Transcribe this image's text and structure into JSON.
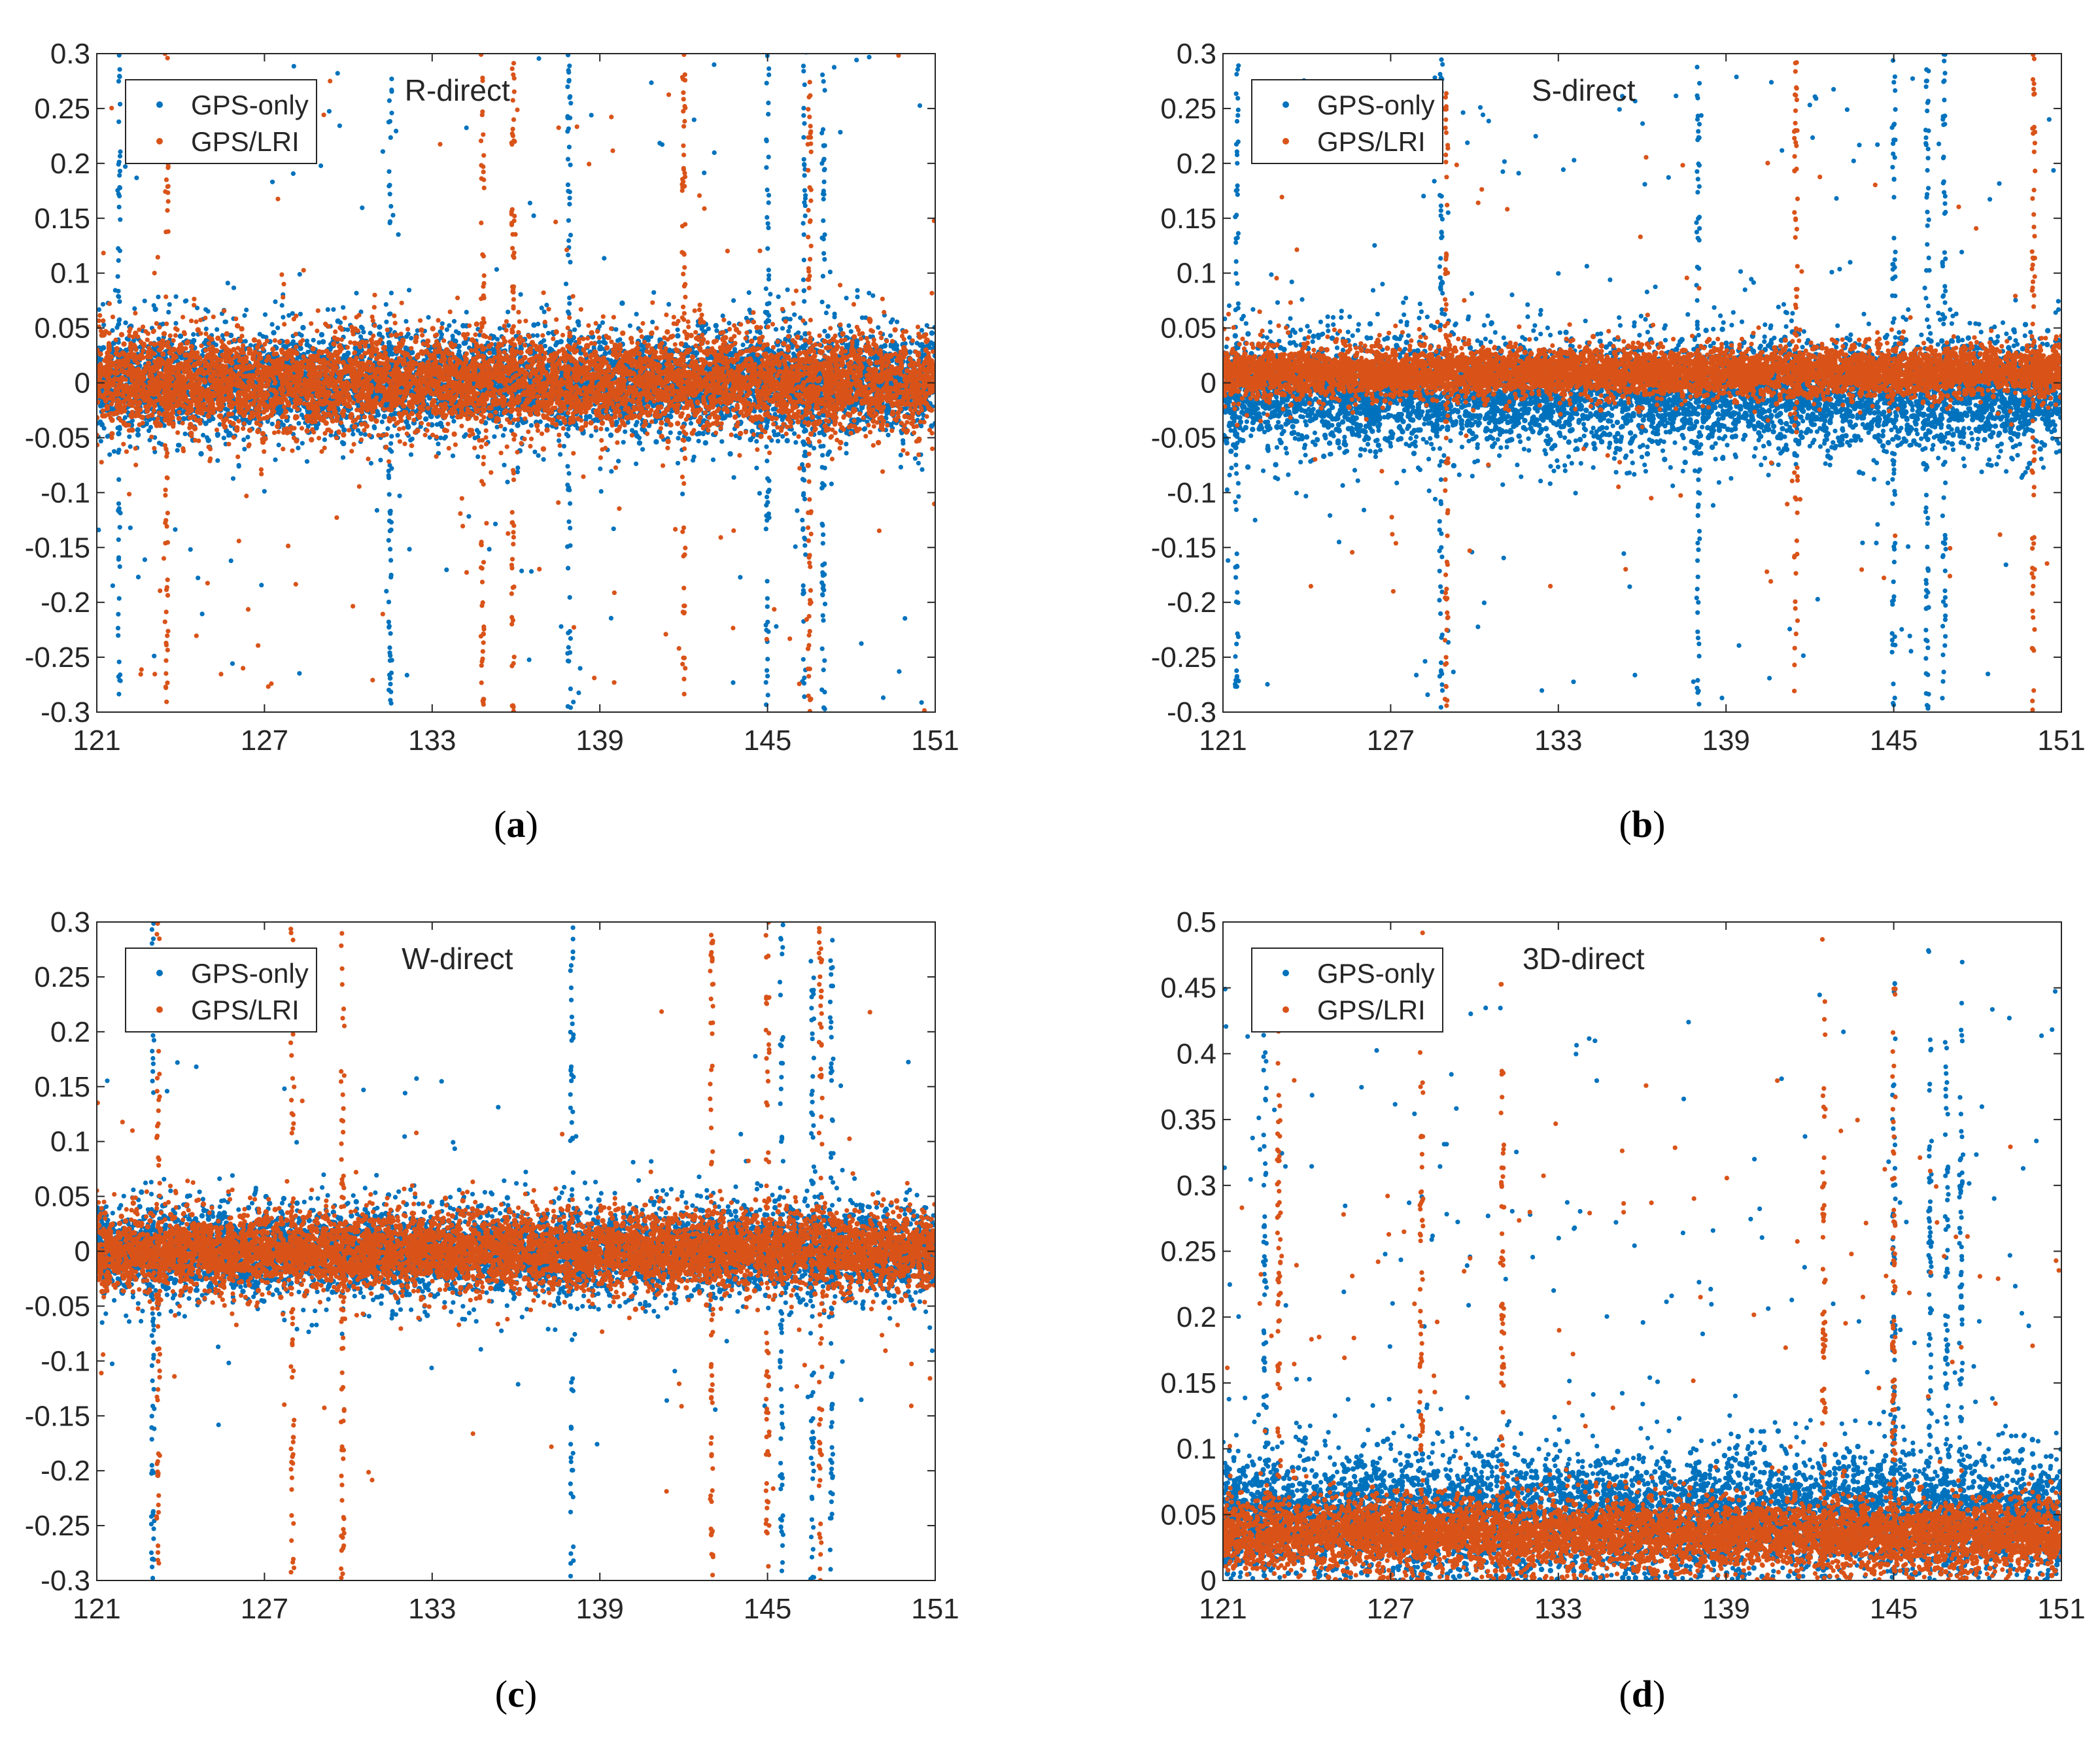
{
  "colors": {
    "gps_only": "#0072BD",
    "gps_lri": "#D95319",
    "axis": "#262626",
    "background": "#FFFFFF"
  },
  "chart_data": [
    {
      "type": "scatter",
      "panel_label": "a",
      "annotation": "R-direct",
      "xlim": [
        121,
        151
      ],
      "ylim": [
        -0.3,
        0.3
      ],
      "xticks": [
        "121",
        "127",
        "133",
        "139",
        "145",
        "151"
      ],
      "yticks": [
        "-0.3",
        "-0.25",
        "-0.2",
        "-0.15",
        "-0.1",
        "-0.05",
        "0",
        "0.05",
        "0.1",
        "0.15",
        "0.2",
        "0.25",
        "0.3"
      ],
      "legend_position": "top-left",
      "series": [
        {
          "name": "GPS-only",
          "color_key": "gps_only",
          "center": 0.0,
          "band": 0.06,
          "spike_scale": 0.35,
          "spike_rate": 0.05,
          "big_spikes": [
            145.0,
            146.3,
            147.0,
            137.9,
            131.5,
            121.8
          ]
        },
        {
          "name": "GPS/LRI",
          "color_key": "gps_lri",
          "center": 0.0,
          "band": 0.055,
          "spike_scale": 0.3,
          "spike_rate": 0.04,
          "big_spikes": [
            146.5,
            134.8,
            135.9,
            123.5,
            142.0
          ]
        }
      ]
    },
    {
      "type": "scatter",
      "panel_label": "b",
      "annotation": "S-direct",
      "xlim": [
        121,
        151
      ],
      "ylim": [
        -0.3,
        0.3
      ],
      "xticks": [
        "121",
        "127",
        "133",
        "139",
        "145",
        "151"
      ],
      "yticks": [
        "-0.3",
        "-0.25",
        "-0.2",
        "-0.15",
        "-0.1",
        "-0.05",
        "0",
        "0.05",
        "0.1",
        "0.15",
        "0.2",
        "0.25",
        "0.3"
      ],
      "legend_position": "top-left",
      "series": [
        {
          "name": "GPS-only",
          "color_key": "gps_only",
          "center": -0.01,
          "band": 0.065,
          "spike_scale": 0.3,
          "spike_rate": 0.05,
          "big_spikes": [
            145.0,
            146.2,
            146.8,
            121.5,
            128.8,
            138.0
          ]
        },
        {
          "name": "GPS/LRI",
          "color_key": "gps_lri",
          "center": 0.01,
          "band": 0.028,
          "spike_scale": 0.2,
          "spike_rate": 0.025,
          "big_spikes": [
            150.0,
            141.5,
            129.0
          ]
        }
      ]
    },
    {
      "type": "scatter",
      "panel_label": "c",
      "annotation": "W-direct",
      "xlim": [
        121,
        151
      ],
      "ylim": [
        -0.3,
        0.3
      ],
      "xticks": [
        "121",
        "127",
        "133",
        "139",
        "145",
        "151"
      ],
      "yticks": [
        "-0.3",
        "-0.25",
        "-0.2",
        "-0.15",
        "-0.1",
        "-0.05",
        "0",
        "0.05",
        "0.1",
        "0.15",
        "0.2",
        "0.25",
        "0.3"
      ],
      "legend_position": "top-left",
      "series": [
        {
          "name": "GPS-only",
          "color_key": "gps_only",
          "center": 0.0,
          "band": 0.05,
          "spike_scale": 0.18,
          "spike_rate": 0.025,
          "big_spikes": [
            138.0,
            145.5,
            146.6,
            147.3,
            123.0
          ]
        },
        {
          "name": "GPS/LRI",
          "color_key": "gps_lri",
          "center": 0.0,
          "band": 0.045,
          "spike_scale": 0.22,
          "spike_rate": 0.02,
          "big_spikes": [
            128.0,
            145.0,
            143.0,
            123.2,
            146.9,
            129.8
          ]
        }
      ]
    },
    {
      "type": "scatter",
      "panel_label": "d",
      "annotation": "3D-direct",
      "xlim": [
        121,
        151
      ],
      "ylim": [
        0,
        0.5
      ],
      "xticks": [
        "121",
        "127",
        "133",
        "139",
        "145",
        "151"
      ],
      "yticks": [
        "0",
        "0.05",
        "0.1",
        "0.15",
        "0.2",
        "0.25",
        "0.3",
        "0.35",
        "0.4",
        "0.45",
        "0.5"
      ],
      "legend_position": "top-left",
      "series": [
        {
          "name": "GPS-only",
          "color_key": "gps_only",
          "center": 0.05,
          "band": 0.06,
          "spike_scale": 0.4,
          "spike_rate": 0.06,
          "big_spikes": [
            145.0,
            146.3,
            146.9,
            147.4,
            122.5
          ]
        },
        {
          "name": "GPS/LRI",
          "color_key": "gps_lri",
          "center": 0.035,
          "band": 0.035,
          "spike_scale": 0.35,
          "spike_rate": 0.04,
          "big_spikes": [
            145.0,
            128.1,
            123.0,
            142.5,
            131.0
          ]
        }
      ]
    }
  ]
}
